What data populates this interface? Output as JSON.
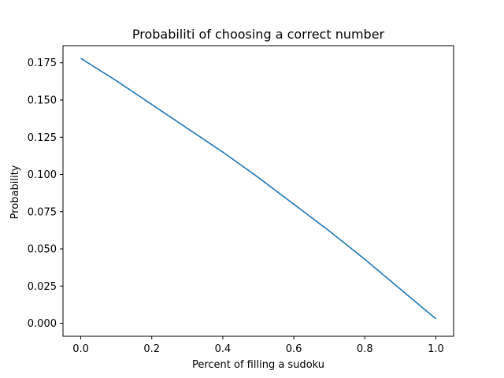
{
  "chart_data": {
    "type": "line",
    "title": "Probabiliti of choosing a correct number",
    "xlabel": "Percent of filling a sudoku",
    "ylabel": "Probability",
    "xlim": [
      -0.05,
      1.05
    ],
    "ylim": [
      -0.0087,
      0.1865
    ],
    "xticks": [
      0.0,
      0.2,
      0.4,
      0.6,
      0.8,
      1.0
    ],
    "xtick_labels": [
      "0.0",
      "0.2",
      "0.4",
      "0.6",
      "0.8",
      "1.0"
    ],
    "yticks": [
      0.0,
      0.025,
      0.05,
      0.075,
      0.1,
      0.125,
      0.15,
      0.175
    ],
    "ytick_labels": [
      "0.000",
      "0.025",
      "0.050",
      "0.075",
      "0.100",
      "0.125",
      "0.150",
      "0.175"
    ],
    "grid": false,
    "series": [
      {
        "color": "#1f77b4",
        "x": [
          0.0,
          0.1,
          0.2,
          0.3,
          0.4,
          0.5,
          0.6,
          0.7,
          0.8,
          0.9,
          1.0
        ],
        "y": [
          0.178,
          0.163,
          0.147,
          0.131,
          0.115,
          0.098,
          0.08,
          0.062,
          0.043,
          0.023,
          0.003
        ]
      }
    ]
  }
}
